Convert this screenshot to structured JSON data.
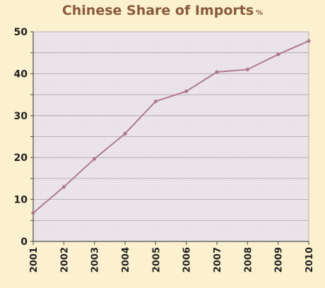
{
  "chart_data": {
    "type": "line",
    "title": "Chinese Share of Imports",
    "unit": "%",
    "xlabel": "",
    "ylabel": "",
    "x": [
      "2001",
      "2002",
      "2003",
      "2004",
      "2005",
      "2006",
      "2007",
      "2008",
      "2009",
      "2010"
    ],
    "ylim": [
      0,
      50
    ],
    "yticks": [
      0,
      10,
      20,
      30,
      40,
      50
    ],
    "grid": true,
    "series": [
      {
        "values": [
          6.8,
          13.0,
          19.7,
          25.7,
          33.4,
          35.8,
          40.4,
          41.0,
          44.6,
          47.8
        ]
      }
    ],
    "colors": {
      "line": "#b07a8e",
      "plot_bg": "#ece6ea",
      "grid": "#a9a0a5",
      "axis": "#4a4a4a",
      "title": "#8a5a3b",
      "page_bg": "#fbf1cf"
    }
  }
}
